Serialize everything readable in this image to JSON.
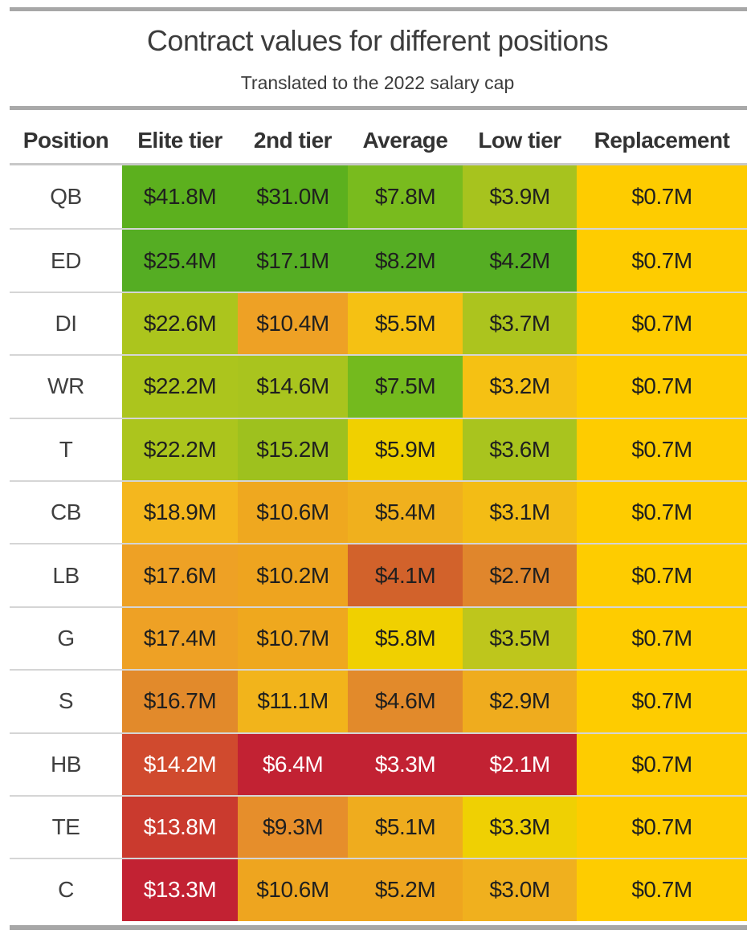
{
  "title": "Contract values for different positions",
  "subtitle": "Translated to the 2022 salary cap",
  "palette": {
    "top_bar": "#a7a7a7",
    "subtitle_rule": "#a9a9a9",
    "header_rule": "#c8c8c8",
    "row_separator": "#d5d5d5",
    "bottom_bar": "#a7a7a7",
    "title_text": "#3c3c3c",
    "header_text": "#333333",
    "position_text": "#3f3f3f",
    "cell_text": "#1f1f1f",
    "cell_text_light": "#ffffff",
    "replacement_gold": "#fecc00"
  },
  "table": {
    "header": [
      "Position",
      "Elite tier",
      "2nd tier",
      "Average",
      "Low tier",
      "Replacement"
    ],
    "rows": [
      {
        "label": "QB",
        "cells": [
          {
            "text": "$41.8M",
            "bg": "#5cb01e"
          },
          {
            "text": "$31.0M",
            "bg": "#5cb01e"
          },
          {
            "text": "$7.8M",
            "bg": "#79bb1e"
          },
          {
            "text": "$3.9M",
            "bg": "#a7c31e"
          },
          {
            "text": "$0.7M",
            "bg": "#fecc00"
          }
        ]
      },
      {
        "label": "ED",
        "cells": [
          {
            "text": "$25.4M",
            "bg": "#55ad23"
          },
          {
            "text": "$17.1M",
            "bg": "#55ad23"
          },
          {
            "text": "$8.2M",
            "bg": "#55ad23"
          },
          {
            "text": "$4.2M",
            "bg": "#55ad23"
          },
          {
            "text": "$0.7M",
            "bg": "#fecc00"
          }
        ]
      },
      {
        "label": "DI",
        "cells": [
          {
            "text": "$22.6M",
            "bg": "#acc51d"
          },
          {
            "text": "$10.4M",
            "bg": "#eea125"
          },
          {
            "text": "$5.5M",
            "bg": "#f5c113"
          },
          {
            "text": "$3.7M",
            "bg": "#acc41e"
          },
          {
            "text": "$0.7M",
            "bg": "#fecc00"
          }
        ]
      },
      {
        "label": "WR",
        "cells": [
          {
            "text": "$22.2M",
            "bg": "#acc51d"
          },
          {
            "text": "$14.6M",
            "bg": "#a9c41e"
          },
          {
            "text": "$7.5M",
            "bg": "#74ba1e"
          },
          {
            "text": "$3.2M",
            "bg": "#f5c113"
          },
          {
            "text": "$0.7M",
            "bg": "#fecc00"
          }
        ]
      },
      {
        "label": "T",
        "cells": [
          {
            "text": "$22.2M",
            "bg": "#acc51d"
          },
          {
            "text": "$15.2M",
            "bg": "#9ec11e"
          },
          {
            "text": "$5.9M",
            "bg": "#f0d000"
          },
          {
            "text": "$3.6M",
            "bg": "#a9c41e"
          },
          {
            "text": "$0.7M",
            "bg": "#fecc00"
          }
        ]
      },
      {
        "label": "CB",
        "cells": [
          {
            "text": "$18.9M",
            "bg": "#f4b71e"
          },
          {
            "text": "$10.6M",
            "bg": "#efa81f"
          },
          {
            "text": "$5.4M",
            "bg": "#f0b01d"
          },
          {
            "text": "$3.1M",
            "bg": "#f3bc15"
          },
          {
            "text": "$0.7M",
            "bg": "#fecc00"
          }
        ]
      },
      {
        "label": "LB",
        "cells": [
          {
            "text": "$17.6M",
            "bg": "#eea125"
          },
          {
            "text": "$10.2M",
            "bg": "#eea41f"
          },
          {
            "text": "$4.1M",
            "bg": "#d2622b"
          },
          {
            "text": "$2.7M",
            "bg": "#e0862c"
          },
          {
            "text": "$0.7M",
            "bg": "#fecc00"
          }
        ]
      },
      {
        "label": "G",
        "cells": [
          {
            "text": "$17.4M",
            "bg": "#eea125"
          },
          {
            "text": "$10.7M",
            "bg": "#efa81e"
          },
          {
            "text": "$5.8M",
            "bg": "#f0d000"
          },
          {
            "text": "$3.5M",
            "bg": "#bec61c"
          },
          {
            "text": "$0.7M",
            "bg": "#fecc00"
          }
        ]
      },
      {
        "label": "S",
        "cells": [
          {
            "text": "$16.7M",
            "bg": "#e28a2b"
          },
          {
            "text": "$11.1M",
            "bg": "#f2b41b"
          },
          {
            "text": "$4.6M",
            "bg": "#e28a2b"
          },
          {
            "text": "$2.9M",
            "bg": "#efac1e"
          },
          {
            "text": "$0.7M",
            "bg": "#fecc00"
          }
        ]
      },
      {
        "label": "HB",
        "cells": [
          {
            "text": "$14.2M",
            "bg": "#d04a2e",
            "fg": "#ffffff"
          },
          {
            "text": "$6.4M",
            "bg": "#c22233",
            "fg": "#ffffff"
          },
          {
            "text": "$3.3M",
            "bg": "#c22233",
            "fg": "#ffffff"
          },
          {
            "text": "$2.1M",
            "bg": "#c22233",
            "fg": "#ffffff"
          },
          {
            "text": "$0.7M",
            "bg": "#fecc00"
          }
        ]
      },
      {
        "label": "TE",
        "cells": [
          {
            "text": "$13.8M",
            "bg": "#ca3a2e",
            "fg": "#ffffff"
          },
          {
            "text": "$9.3M",
            "bg": "#e68e2b"
          },
          {
            "text": "$5.1M",
            "bg": "#efac1e"
          },
          {
            "text": "$3.3M",
            "bg": "#efd003"
          },
          {
            "text": "$0.7M",
            "bg": "#fecc00"
          }
        ]
      },
      {
        "label": "C",
        "cells": [
          {
            "text": "$13.3M",
            "bg": "#c22233",
            "fg": "#ffffff"
          },
          {
            "text": "$10.6M",
            "bg": "#eea51f"
          },
          {
            "text": "$5.2M",
            "bg": "#eea51f"
          },
          {
            "text": "$3.0M",
            "bg": "#f0b01e"
          },
          {
            "text": "$0.7M",
            "bg": "#fecc00"
          }
        ]
      }
    ]
  },
  "chart_data": {
    "type": "heatmap",
    "title": "Contract values for different positions",
    "subtitle": "Translated to the 2022 salary cap",
    "rows": [
      "QB",
      "ED",
      "DI",
      "WR",
      "T",
      "CB",
      "LB",
      "G",
      "S",
      "HB",
      "TE",
      "C"
    ],
    "columns": [
      "Elite tier",
      "2nd tier",
      "Average",
      "Low tier",
      "Replacement"
    ],
    "unit": "USD millions",
    "values_musd": [
      [
        41.8,
        31.0,
        7.8,
        3.9,
        0.7
      ],
      [
        25.4,
        17.1,
        8.2,
        4.2,
        0.7
      ],
      [
        22.6,
        10.4,
        5.5,
        3.7,
        0.7
      ],
      [
        22.2,
        14.6,
        7.5,
        3.2,
        0.7
      ],
      [
        22.2,
        15.2,
        5.9,
        3.6,
        0.7
      ],
      [
        18.9,
        10.6,
        5.4,
        3.1,
        0.7
      ],
      [
        17.6,
        10.2,
        4.1,
        2.7,
        0.7
      ],
      [
        17.4,
        10.7,
        5.8,
        3.5,
        0.7
      ],
      [
        16.7,
        11.1,
        4.6,
        2.9,
        0.7
      ],
      [
        14.2,
        6.4,
        3.3,
        2.1,
        0.7
      ],
      [
        13.8,
        9.3,
        5.1,
        3.3,
        0.7
      ],
      [
        13.3,
        10.6,
        5.2,
        3.0,
        0.7
      ]
    ],
    "color_scale": "green (high value) through yellow/orange to red (low value); Replacement column constant gold",
    "legend_position": "none",
    "grid": "row separators only"
  }
}
